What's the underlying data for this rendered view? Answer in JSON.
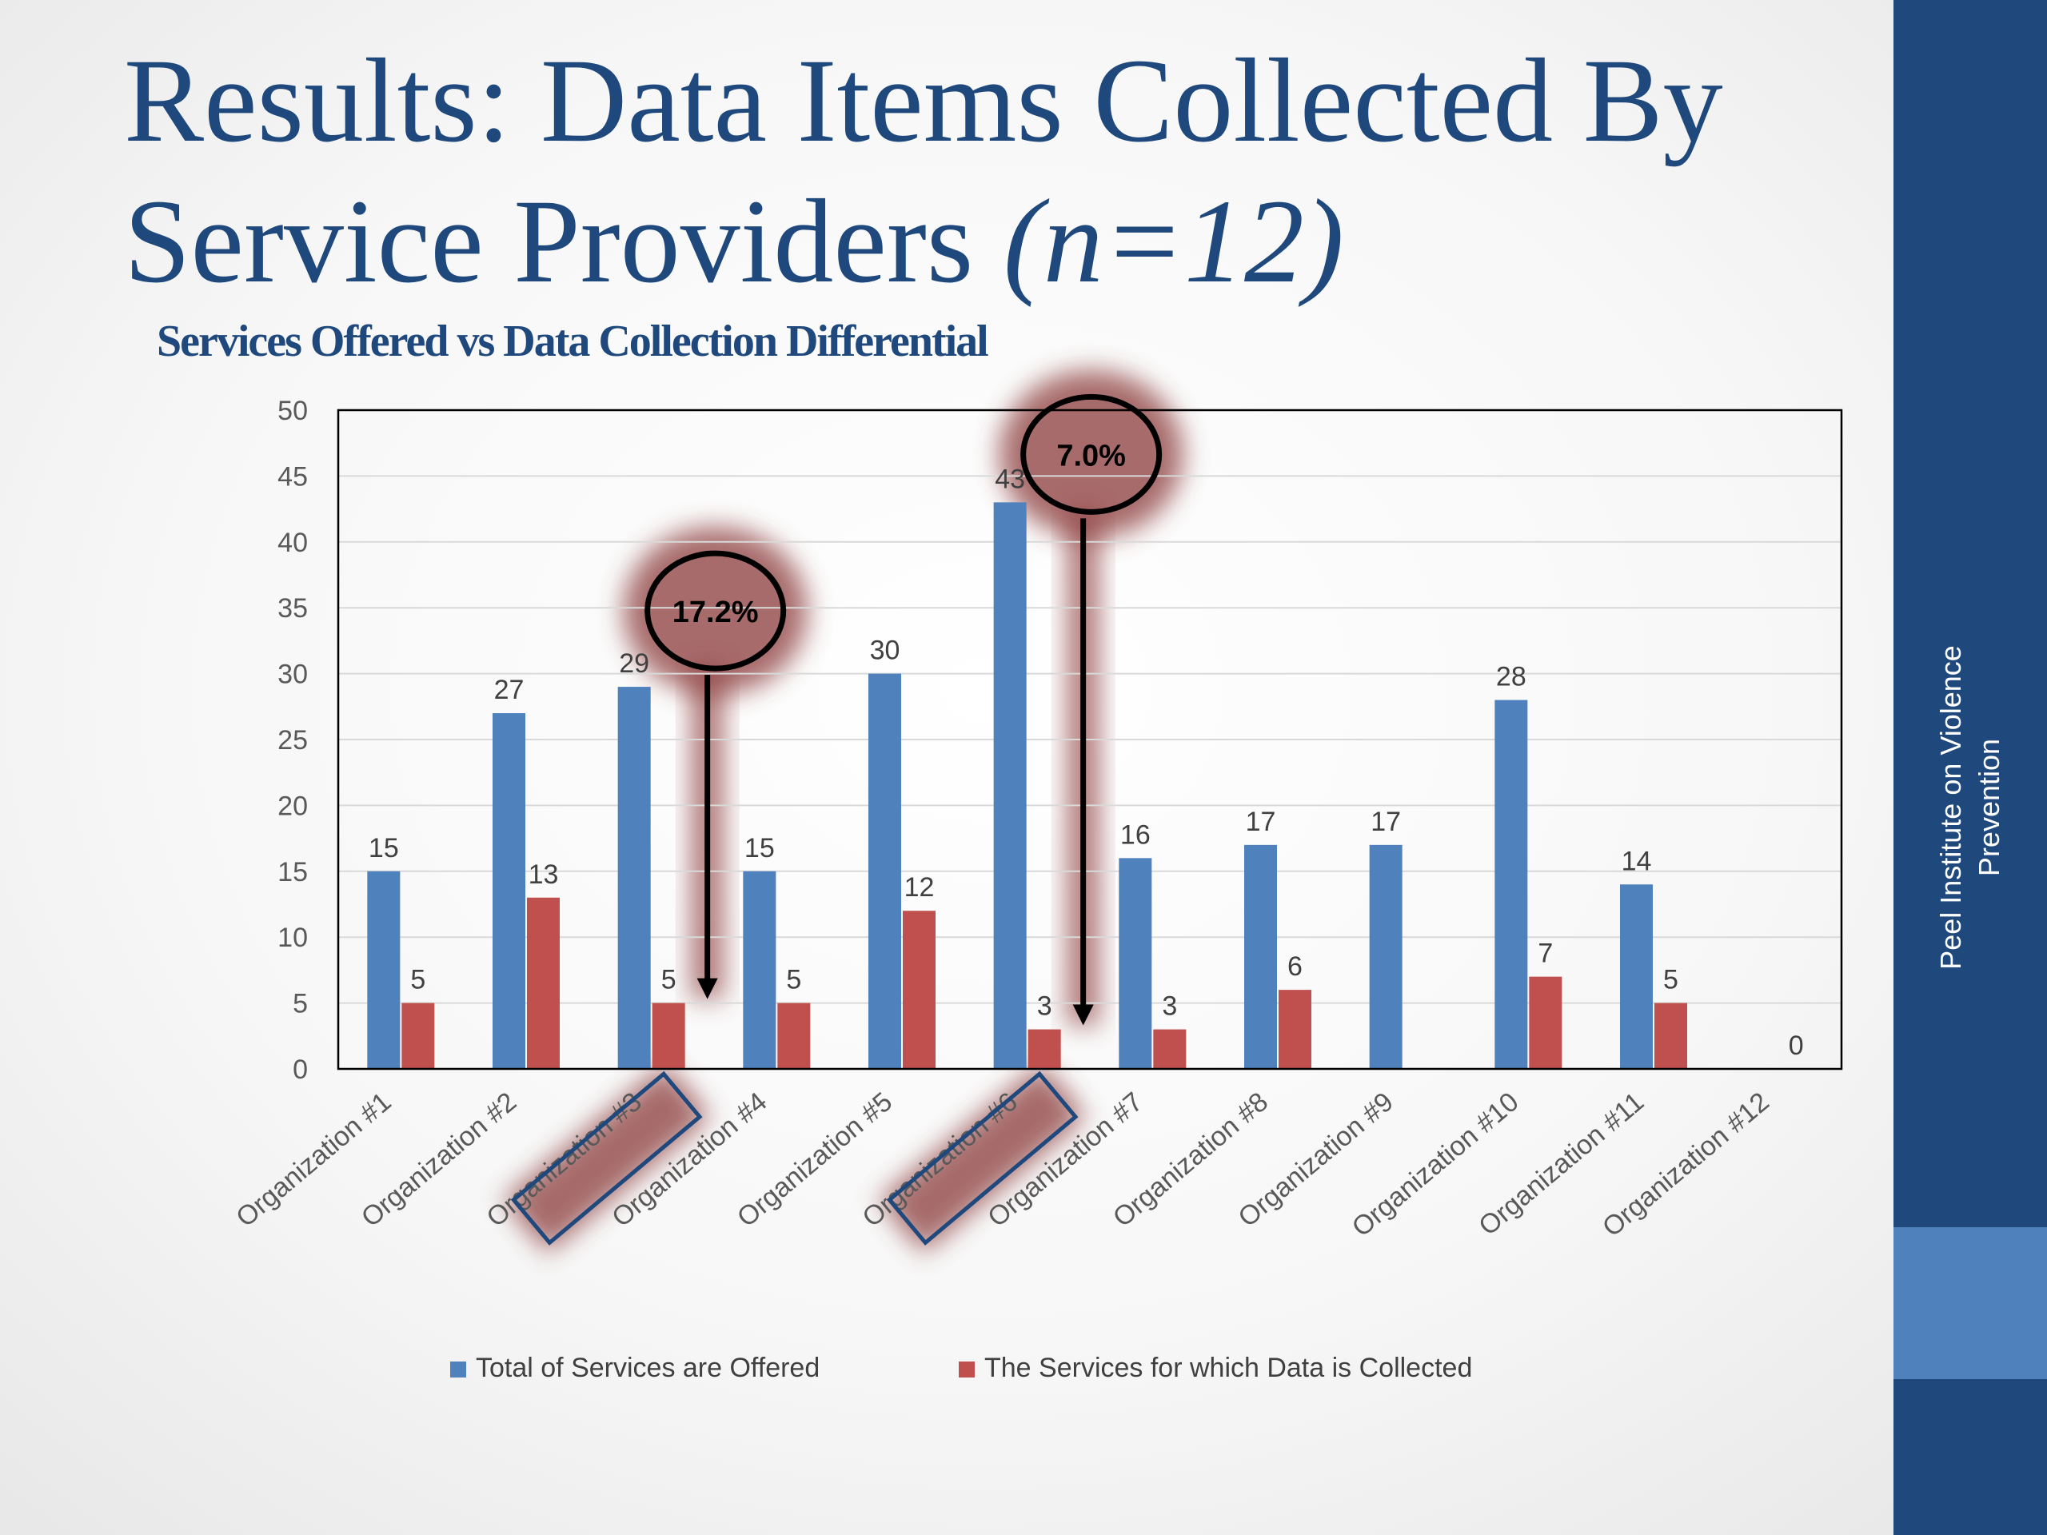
{
  "slide": {
    "title_main": "Results: Data Items Collected By Service Providers ",
    "title_italic": "(n=12)",
    "sidebar_text": "Peel Institute on Violence Prevention",
    "colors": {
      "title": "#1f497d",
      "sidebar": "#1f497d",
      "sidebar_accent": "#4f81bd",
      "highlight": "#8b3a3a"
    }
  },
  "chart_data": {
    "type": "bar",
    "title": "Services Offered vs Data Collection Differential",
    "categories": [
      "Organization #1",
      "Organization #2",
      "Organization #3",
      "Organization #4",
      "Organization #5",
      "Organization #6",
      "Organization #7",
      "Organization #8",
      "Organization #9",
      "Organization #10",
      "Organization #11",
      "Organization #12"
    ],
    "series": [
      {
        "name": "Total of Services are Offered",
        "color": "#4f81bd",
        "values": [
          15,
          27,
          29,
          15,
          30,
          43,
          16,
          17,
          17,
          28,
          14,
          0
        ],
        "labels": [
          "15",
          "27",
          "29",
          "15",
          "30",
          "43",
          "16",
          "17",
          "17",
          "28",
          "14",
          ""
        ]
      },
      {
        "name": "The Services for which Data is Collected",
        "color": "#c0504d",
        "values": [
          5,
          13,
          5,
          5,
          12,
          3,
          3,
          6,
          0,
          7,
          5,
          0
        ],
        "labels": [
          "5",
          "13",
          "5",
          "5",
          "12",
          "3",
          "3",
          "6",
          "",
          "7",
          "5",
          "0"
        ]
      }
    ],
    "ylim": [
      0,
      50
    ],
    "yticks": [
      0,
      5,
      10,
      15,
      20,
      25,
      30,
      35,
      40,
      45,
      50
    ],
    "grid": true,
    "legend": "bottom",
    "annotations": [
      {
        "text": "17.2%",
        "category": "Organization #3"
      },
      {
        "text": "7.0%",
        "category": "Organization #6"
      }
    ]
  }
}
